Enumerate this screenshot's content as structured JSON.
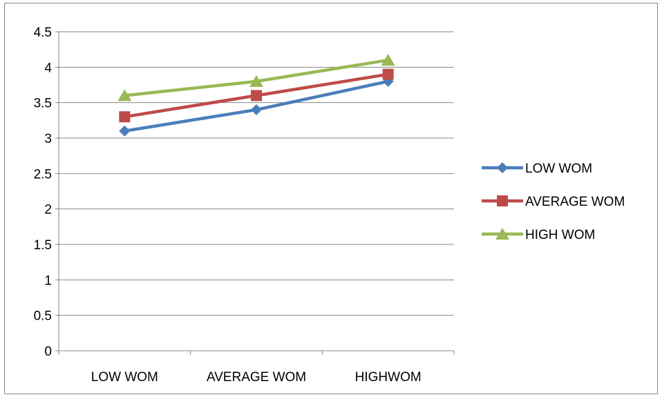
{
  "chart_data": {
    "type": "line",
    "title": "",
    "xlabel": "",
    "ylabel": "",
    "categories": [
      "LOW WOM",
      "AVERAGE WOM",
      "HIGHWOM"
    ],
    "ylim": [
      0,
      4.5
    ],
    "yticks": [
      "0",
      "0.5",
      "1",
      "1.5",
      "2",
      "2.5",
      "3",
      "3.5",
      "4",
      "4.5"
    ],
    "grid": "horizontal",
    "legend_position": "right",
    "series": [
      {
        "name": "LOW WOM",
        "values": [
          3.1,
          3.4,
          3.8
        ],
        "color": "#4a7ebb",
        "marker": "diamond"
      },
      {
        "name": "AVERAGE WOM",
        "values": [
          3.3,
          3.6,
          3.9
        ],
        "color": "#be4b48",
        "marker": "square"
      },
      {
        "name": "HIGH WOM",
        "values": [
          3.6,
          3.8,
          4.1
        ],
        "color": "#98b954",
        "marker": "triangle"
      }
    ]
  }
}
